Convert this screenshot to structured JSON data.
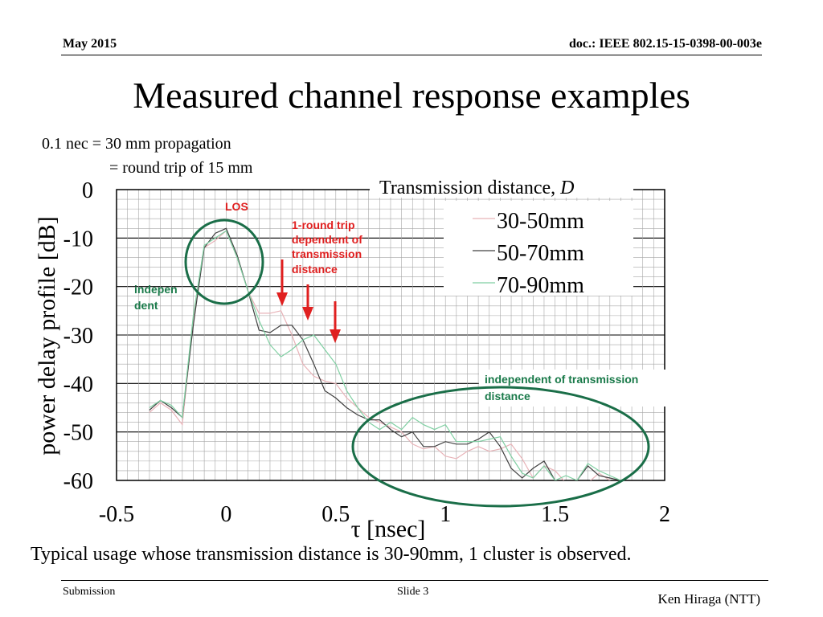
{
  "slide": {
    "date": "May 2015",
    "doc": "doc.: IEEE 802.15-15-0398-00-003e",
    "title": "Measured channel response examples",
    "note_line1": "0.1 nec = 30 mm propagation",
    "note_line2": "= round trip of 15 mm",
    "caption": "Typical usage whose transmission distance is 30-90mm, 1 cluster is observed.",
    "footer_left": "Submission",
    "footer_center": "Slide 3",
    "footer_right": "Ken Hiraga (NTT)"
  },
  "colors": {
    "series_30_50": "#e8b3b8",
    "series_50_70": "#404040",
    "series_70_90": "#7fcfa2",
    "annotation_red": "#e02020",
    "annotation_green": "#1a7a4a",
    "ellipse_green": "#1a6e48",
    "grid": "#a6a6a6"
  },
  "chart_data": {
    "type": "line",
    "xlabel": "τ [nsec]",
    "ylabel": "power delay profile [dB]",
    "xlim": [
      -0.5,
      2
    ],
    "ylim": [
      -60,
      0
    ],
    "xticks": [
      "-0.5",
      "0",
      "0.5",
      "1",
      "1.5",
      "2"
    ],
    "yticks": [
      "0",
      "-10",
      "-20",
      "-30",
      "-40",
      "-50",
      "-60"
    ],
    "grid": true,
    "legend_title": "Transmission distance, ",
    "legend_title_italic": "D",
    "legend_position": "top-right",
    "series": [
      {
        "name": "30-50mm",
        "x": [
          -0.35,
          -0.3,
          -0.25,
          -0.2,
          -0.15,
          -0.1,
          -0.05,
          0,
          0.05,
          0.1,
          0.15,
          0.2,
          0.25,
          0.3,
          0.35,
          0.4,
          0.45,
          0.5,
          0.55,
          0.6,
          0.65,
          0.7,
          0.75,
          0.8,
          0.85,
          0.9,
          0.95,
          1,
          1.05,
          1.1,
          1.15,
          1.2,
          1.25,
          1.3,
          1.35,
          1.4,
          1.45,
          1.5,
          1.55,
          1.6,
          1.65,
          1.7,
          1.75,
          1.8
        ],
        "y": [
          -46,
          -44,
          -45.5,
          -48.5,
          -27,
          -12,
          -10.5,
          -8.5,
          -14,
          -21,
          -25.5,
          -25.5,
          -25,
          -30,
          -36,
          -38.5,
          -39.5,
          -40,
          -43,
          -45,
          -47,
          -48,
          -49,
          -50,
          -52.5,
          -53.5,
          -53,
          -55,
          -55.5,
          -54,
          -53,
          -54,
          -53.5,
          -52.5,
          -55.5,
          -59.5,
          -57,
          -58,
          -60.5,
          -61,
          -60.5,
          -58.5,
          -60,
          -61
        ]
      },
      {
        "name": "50-70mm",
        "x": [
          -0.35,
          -0.3,
          -0.25,
          -0.2,
          -0.15,
          -0.1,
          -0.05,
          0,
          0.05,
          0.1,
          0.15,
          0.2,
          0.25,
          0.3,
          0.35,
          0.4,
          0.45,
          0.5,
          0.55,
          0.6,
          0.65,
          0.7,
          0.75,
          0.8,
          0.85,
          0.9,
          0.95,
          1,
          1.05,
          1.1,
          1.15,
          1.2,
          1.25,
          1.3,
          1.35,
          1.4,
          1.45,
          1.5,
          1.55,
          1.6,
          1.65,
          1.7,
          1.75,
          1.8
        ],
        "y": [
          -45.5,
          -43.5,
          -45,
          -47,
          -28,
          -12,
          -9,
          -8,
          -13.5,
          -21,
          -29,
          -29.5,
          -28,
          -28,
          -31,
          -36,
          -41.5,
          -43,
          -45,
          -46.5,
          -47.5,
          -47.5,
          -49.5,
          -51,
          -50,
          -53,
          -53,
          -52,
          -52.5,
          -52.5,
          -51.5,
          -50,
          -53,
          -57.5,
          -59.5,
          -57.5,
          -56,
          -60,
          -60.5,
          -60,
          -57,
          -59,
          -59.5,
          -60
        ]
      },
      {
        "name": "70-90mm",
        "x": [
          -0.35,
          -0.3,
          -0.25,
          -0.2,
          -0.15,
          -0.1,
          -0.05,
          0,
          0.05,
          0.1,
          0.15,
          0.2,
          0.25,
          0.3,
          0.35,
          0.4,
          0.45,
          0.5,
          0.55,
          0.6,
          0.65,
          0.7,
          0.75,
          0.8,
          0.85,
          0.9,
          0.95,
          1,
          1.05,
          1.1,
          1.15,
          1.2,
          1.25,
          1.3,
          1.35,
          1.4,
          1.45,
          1.5,
          1.55,
          1.6,
          1.65,
          1.7,
          1.75,
          1.8
        ],
        "y": [
          -45,
          -43.5,
          -44.5,
          -47,
          -26,
          -11.5,
          -10,
          -8.5,
          -14,
          -21,
          -27,
          -32,
          -34.5,
          -33,
          -31,
          -30,
          -33,
          -36,
          -41.5,
          -45,
          -48,
          -49.5,
          -48,
          -49.5,
          -47,
          -48.5,
          -49.5,
          -48.5,
          -52,
          -52,
          -52,
          -51.5,
          -51,
          -55,
          -58.5,
          -59.5,
          -57,
          -60,
          -59,
          -60,
          -56.5,
          -58,
          -59,
          -60
        ]
      }
    ]
  },
  "annotations": {
    "los": "LOS",
    "round_trip_1": "1-round trip",
    "round_trip_2": "dependent of",
    "round_trip_3": "transmission",
    "round_trip_4": "distance",
    "indep_1": "indepen",
    "indep_2": "dent",
    "indep_tail_1": "independent of transmission",
    "indep_tail_2": "distance"
  }
}
